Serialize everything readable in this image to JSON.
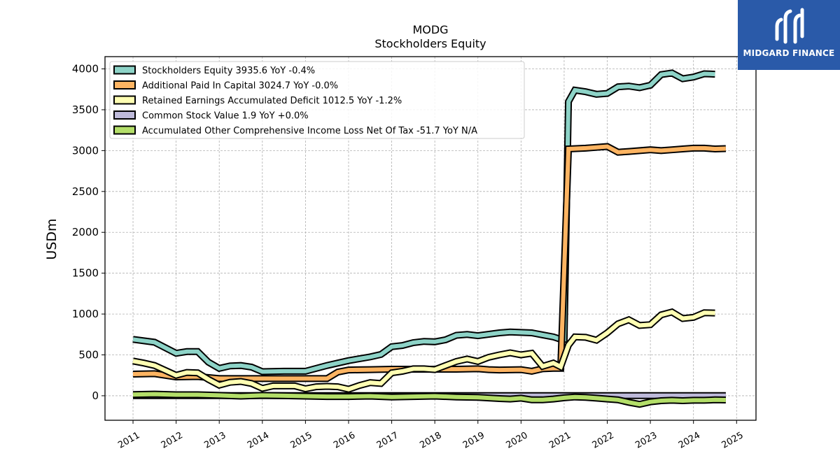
{
  "logo": {
    "text": "MIDGARD FINANCE"
  },
  "chart_data": {
    "type": "line",
    "title": "MODG",
    "subtitle": "Stockholders  Equity",
    "ylabel": "USDm",
    "xlabel": "",
    "ylim": [
      -300,
      4150
    ],
    "xlim": [
      2010.35,
      2025.45
    ],
    "yticks": [
      0,
      500,
      1000,
      1500,
      2000,
      2500,
      3000,
      3500,
      4000
    ],
    "xticks": [
      2011,
      2012,
      2013,
      2014,
      2015,
      2016,
      2017,
      2018,
      2019,
      2020,
      2021,
      2022,
      2023,
      2024,
      2025
    ],
    "grid": true,
    "legend_position": "top-left",
    "series": [
      {
        "name": "Stockholders Equity",
        "legend_label": "Stockholders Equity  3935.6 YoY -0.4%",
        "color": "#8dd3c7",
        "points": [
          [
            2011.0,
            690
          ],
          [
            2011.5,
            655
          ],
          [
            2012.0,
            520
          ],
          [
            2012.25,
            540
          ],
          [
            2012.5,
            540
          ],
          [
            2012.75,
            410
          ],
          [
            2013.0,
            335
          ],
          [
            2013.25,
            365
          ],
          [
            2013.5,
            370
          ],
          [
            2013.75,
            350
          ],
          [
            2014.0,
            295
          ],
          [
            2014.5,
            300
          ],
          [
            2015.0,
            300
          ],
          [
            2015.5,
            370
          ],
          [
            2016.0,
            430
          ],
          [
            2016.5,
            475
          ],
          [
            2016.75,
            505
          ],
          [
            2017.0,
            600
          ],
          [
            2017.25,
            615
          ],
          [
            2017.5,
            650
          ],
          [
            2017.75,
            665
          ],
          [
            2018.0,
            660
          ],
          [
            2018.25,
            685
          ],
          [
            2018.5,
            740
          ],
          [
            2018.75,
            750
          ],
          [
            2019.0,
            735
          ],
          [
            2019.5,
            770
          ],
          [
            2019.75,
            780
          ],
          [
            2020.0,
            775
          ],
          [
            2020.25,
            770
          ],
          [
            2020.5,
            745
          ],
          [
            2020.75,
            720
          ],
          [
            2020.92,
            690
          ],
          [
            2021.0,
            690
          ],
          [
            2021.1,
            3600
          ],
          [
            2021.25,
            3740
          ],
          [
            2021.5,
            3720
          ],
          [
            2021.75,
            3690
          ],
          [
            2022.0,
            3700
          ],
          [
            2022.25,
            3780
          ],
          [
            2022.5,
            3790
          ],
          [
            2022.75,
            3770
          ],
          [
            2023.0,
            3800
          ],
          [
            2023.25,
            3930
          ],
          [
            2023.5,
            3950
          ],
          [
            2023.75,
            3880
          ],
          [
            2024.0,
            3900
          ],
          [
            2024.25,
            3940
          ],
          [
            2024.5,
            3935
          ]
        ]
      },
      {
        "name": "Additional Paid In Capital",
        "legend_label": "Additional Paid In Capital  3024.7 YoY -0.0%",
        "color": "#fdb462",
        "points": [
          [
            2011.0,
            265
          ],
          [
            2011.5,
            270
          ],
          [
            2012.0,
            230
          ],
          [
            2012.5,
            235
          ],
          [
            2013.0,
            210
          ],
          [
            2013.5,
            210
          ],
          [
            2014.0,
            210
          ],
          [
            2014.5,
            210
          ],
          [
            2015.0,
            210
          ],
          [
            2015.5,
            210
          ],
          [
            2015.75,
            290
          ],
          [
            2016.0,
            315
          ],
          [
            2016.5,
            320
          ],
          [
            2017.0,
            325
          ],
          [
            2017.5,
            325
          ],
          [
            2018.0,
            325
          ],
          [
            2018.5,
            325
          ],
          [
            2019.0,
            330
          ],
          [
            2019.25,
            320
          ],
          [
            2019.5,
            315
          ],
          [
            2020.0,
            320
          ],
          [
            2020.25,
            300
          ],
          [
            2020.5,
            330
          ],
          [
            2020.75,
            335
          ],
          [
            2020.92,
            335
          ],
          [
            2021.1,
            3020
          ],
          [
            2021.5,
            3030
          ],
          [
            2021.75,
            3040
          ],
          [
            2022.0,
            3050
          ],
          [
            2022.25,
            2980
          ],
          [
            2022.5,
            2990
          ],
          [
            2023.0,
            3010
          ],
          [
            2023.25,
            3000
          ],
          [
            2023.5,
            3010
          ],
          [
            2023.75,
            3020
          ],
          [
            2024.0,
            3030
          ],
          [
            2024.25,
            3030
          ],
          [
            2024.5,
            3020
          ],
          [
            2024.75,
            3025
          ]
        ]
      },
      {
        "name": "Retained Earnings Accumulated Deficit",
        "legend_label": "Retained Earnings Accumulated Deficit  1012.5 YoY -1.2%",
        "color": "#ffffb3",
        "points": [
          [
            2011.0,
            425
          ],
          [
            2011.25,
            400
          ],
          [
            2011.5,
            370
          ],
          [
            2011.75,
            310
          ],
          [
            2012.0,
            250
          ],
          [
            2012.25,
            285
          ],
          [
            2012.5,
            280
          ],
          [
            2012.75,
            200
          ],
          [
            2013.0,
            130
          ],
          [
            2013.25,
            165
          ],
          [
            2013.5,
            175
          ],
          [
            2013.75,
            150
          ],
          [
            2014.0,
            90
          ],
          [
            2014.25,
            120
          ],
          [
            2014.5,
            120
          ],
          [
            2014.75,
            120
          ],
          [
            2015.0,
            85
          ],
          [
            2015.25,
            110
          ],
          [
            2015.5,
            115
          ],
          [
            2015.75,
            110
          ],
          [
            2016.0,
            80
          ],
          [
            2016.25,
            125
          ],
          [
            2016.5,
            160
          ],
          [
            2016.75,
            150
          ],
          [
            2017.0,
            280
          ],
          [
            2017.25,
            300
          ],
          [
            2017.5,
            330
          ],
          [
            2017.75,
            330
          ],
          [
            2018.0,
            320
          ],
          [
            2018.25,
            370
          ],
          [
            2018.5,
            420
          ],
          [
            2018.75,
            450
          ],
          [
            2019.0,
            420
          ],
          [
            2019.25,
            470
          ],
          [
            2019.5,
            500
          ],
          [
            2019.75,
            525
          ],
          [
            2020.0,
            500
          ],
          [
            2020.25,
            520
          ],
          [
            2020.5,
            360
          ],
          [
            2020.75,
            400
          ],
          [
            2020.92,
            355
          ],
          [
            2021.1,
            620
          ],
          [
            2021.25,
            720
          ],
          [
            2021.5,
            715
          ],
          [
            2021.75,
            680
          ],
          [
            2022.0,
            770
          ],
          [
            2022.25,
            880
          ],
          [
            2022.5,
            930
          ],
          [
            2022.75,
            860
          ],
          [
            2023.0,
            870
          ],
          [
            2023.25,
            990
          ],
          [
            2023.5,
            1025
          ],
          [
            2023.75,
            945
          ],
          [
            2024.0,
            960
          ],
          [
            2024.25,
            1015
          ],
          [
            2024.5,
            1013
          ]
        ]
      },
      {
        "name": "Common Stock Value",
        "legend_label": "Common Stock Value  1.9 YoY +0.0%",
        "color": "#bebada",
        "points": [
          [
            2011.0,
            1.9
          ],
          [
            2024.75,
            1.9
          ]
        ]
      },
      {
        "name": "Accumulated Other Comprehensive Income Loss Net Of Tax",
        "legend_label": "Accumulated Other Comprehensive Income Loss Net Of Tax  -51.7 YoY N/A",
        "color": "#b3de69",
        "points": [
          [
            2011.0,
            15
          ],
          [
            2011.5,
            20
          ],
          [
            2012.0,
            12
          ],
          [
            2012.5,
            12
          ],
          [
            2013.0,
            5
          ],
          [
            2013.5,
            -5
          ],
          [
            2014.0,
            5
          ],
          [
            2014.5,
            0
          ],
          [
            2015.0,
            -5
          ],
          [
            2015.5,
            -10
          ],
          [
            2016.0,
            -10
          ],
          [
            2016.5,
            -5
          ],
          [
            2017.0,
            -15
          ],
          [
            2017.5,
            -10
          ],
          [
            2018.0,
            -5
          ],
          [
            2018.5,
            -15
          ],
          [
            2019.0,
            -20
          ],
          [
            2019.5,
            -35
          ],
          [
            2019.75,
            -40
          ],
          [
            2020.0,
            -30
          ],
          [
            2020.25,
            -50
          ],
          [
            2020.5,
            -50
          ],
          [
            2020.75,
            -40
          ],
          [
            2021.0,
            -25
          ],
          [
            2021.25,
            -15
          ],
          [
            2021.5,
            -20
          ],
          [
            2021.75,
            -30
          ],
          [
            2022.0,
            -40
          ],
          [
            2022.25,
            -50
          ],
          [
            2022.5,
            -80
          ],
          [
            2022.75,
            -105
          ],
          [
            2023.0,
            -75
          ],
          [
            2023.25,
            -60
          ],
          [
            2023.5,
            -55
          ],
          [
            2023.75,
            -60
          ],
          [
            2024.0,
            -55
          ],
          [
            2024.25,
            -55
          ],
          [
            2024.5,
            -50
          ],
          [
            2024.75,
            -52
          ]
        ]
      }
    ]
  }
}
